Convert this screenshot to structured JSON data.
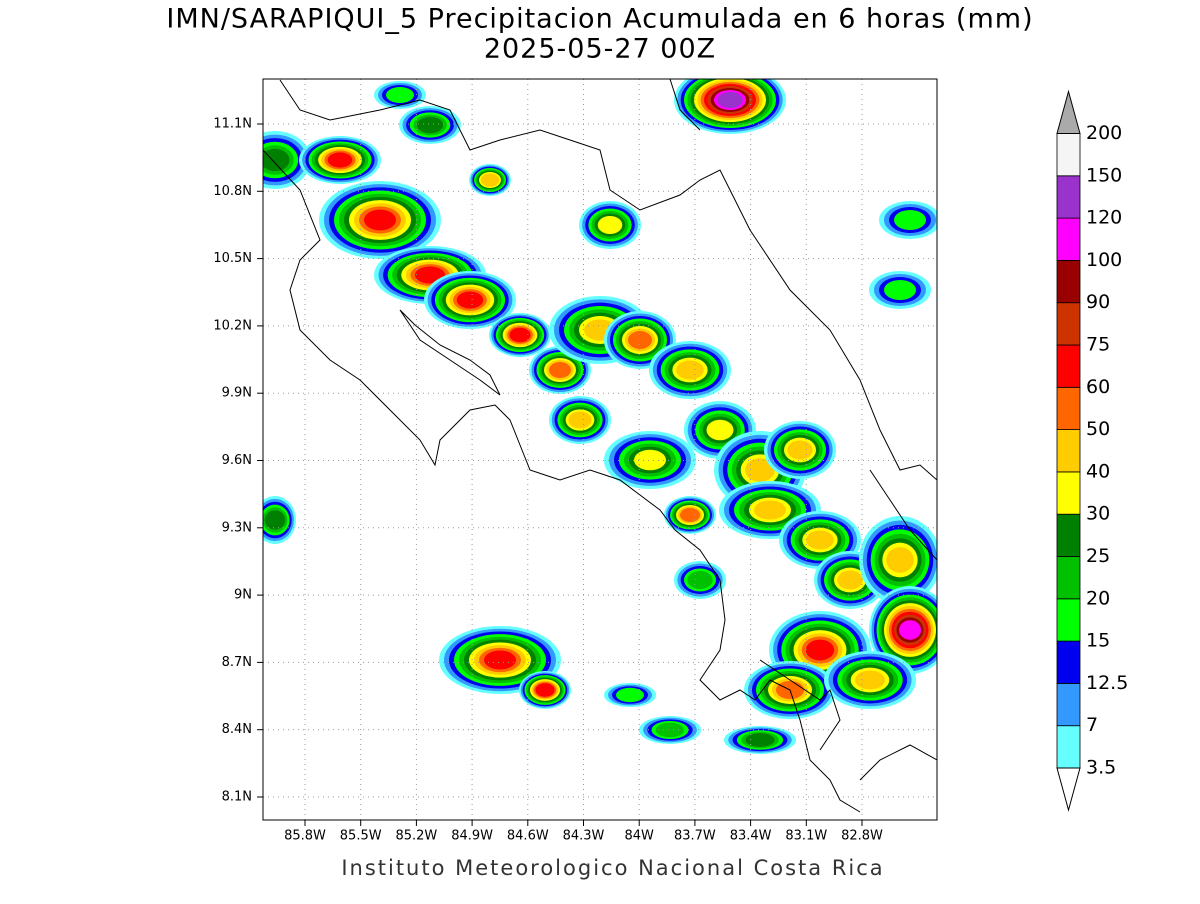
{
  "title": "IMN/SARAPIQUI_5 Precipitacion Acumulada en 6 horas (mm)",
  "subtitle": "2025-05-27 00Z",
  "map": {
    "lon_labels": [
      "85.8W",
      "85.5W",
      "85.2W",
      "84.9W",
      "84.6W",
      "84.3W",
      "84W",
      "83.7W",
      "83.4W",
      "83.1W",
      "82.8W"
    ],
    "lat_labels": [
      "11.1N",
      "10.8N",
      "10.5N",
      "10.2N",
      "9.9N",
      "9.6N",
      "9.3N",
      "9N",
      "8.7N",
      "8.4N",
      "8.1N"
    ]
  },
  "colorbar": {
    "levels": [
      "3.5",
      "7",
      "12.5",
      "15",
      "20",
      "25",
      "30",
      "40",
      "50",
      "60",
      "75",
      "90",
      "100",
      "120",
      "150",
      "200"
    ],
    "colors": [
      "#ffffff",
      "#66ffff",
      "#3399ff",
      "#0000ee",
      "#00ff00",
      "#00c000",
      "#008000",
      "#ffff00",
      "#ffcc00",
      "#ff6600",
      "#ff0000",
      "#cc3300",
      "#990000",
      "#ff00ff",
      "#9933cc",
      "#f5f5f5",
      "#aaaaaa"
    ]
  },
  "footer": "Instituto Meteorologico Nacional Costa Rica"
}
